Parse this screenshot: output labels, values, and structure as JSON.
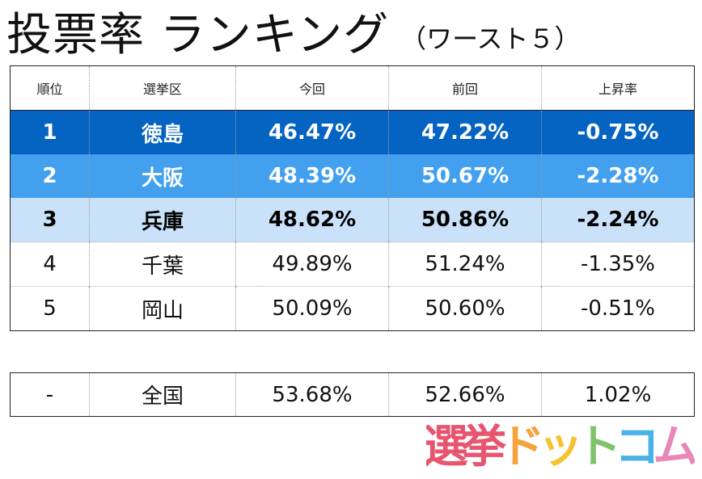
{
  "title": {
    "main": "投票率 ランキング",
    "sub": "（ワースト５）"
  },
  "table": {
    "headers": [
      "順位",
      "選挙区",
      "今回",
      "前回",
      "上昇率"
    ],
    "rows": [
      {
        "rank": "1",
        "district": "徳島",
        "current": "46.47%",
        "previous": "47.22%",
        "change": "-0.75%"
      },
      {
        "rank": "2",
        "district": "大阪",
        "current": "48.39%",
        "previous": "50.67%",
        "change": "-2.28%"
      },
      {
        "rank": "3",
        "district": "兵庫",
        "current": "48.62%",
        "previous": "50.86%",
        "change": "-2.24%"
      },
      {
        "rank": "4",
        "district": "千葉",
        "current": "49.89%",
        "previous": "51.24%",
        "change": "-1.35%"
      },
      {
        "rank": "5",
        "district": "岡山",
        "current": "50.09%",
        "previous": "50.60%",
        "change": "-0.51%"
      }
    ],
    "highlight_colors": [
      "#0563c1",
      "#42a0ef",
      "#c9e2f9"
    ]
  },
  "national": {
    "rank": "-",
    "district": "全国",
    "current": "53.68%",
    "previous": "52.66%",
    "change": "1.02%"
  },
  "logo": {
    "text": "選挙ドットコム",
    "colors": [
      "#e8556f",
      "#e8556f",
      "#f7a23b",
      "#f4c430",
      "#7cc36a",
      "#49b3e8",
      "#e887b8"
    ]
  }
}
